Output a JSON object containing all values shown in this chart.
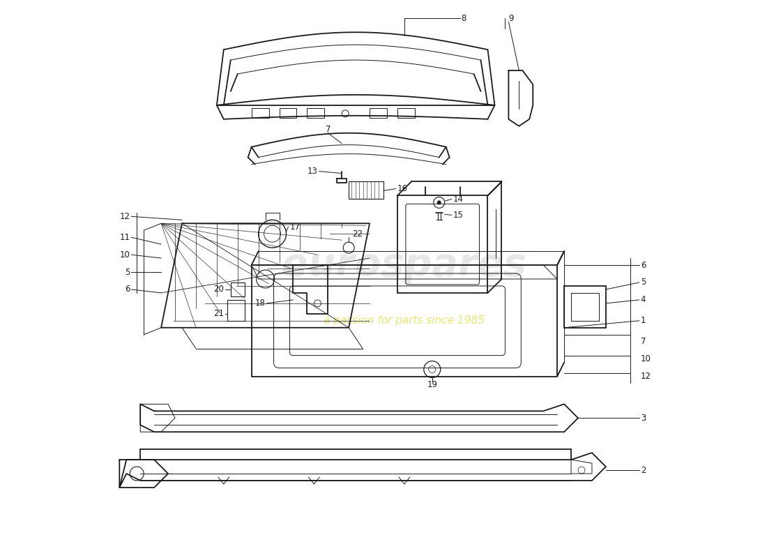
{
  "background_color": "#ffffff",
  "line_color": "#1a1a1a",
  "watermark_color1": "#c8c8c8",
  "watermark_color2": "#d4d400",
  "label_fontsize": 8.5,
  "lw_main": 1.3,
  "lw_thin": 0.7
}
